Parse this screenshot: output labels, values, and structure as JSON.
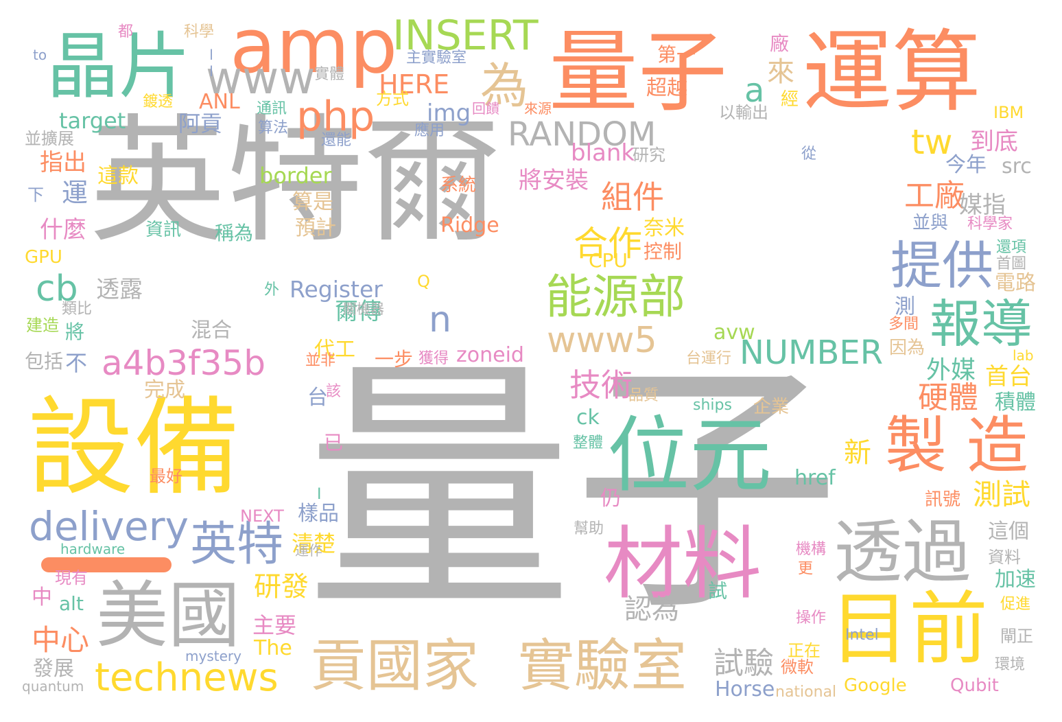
{
  "palette": {
    "gray": "#b3b3b3",
    "orange": "#fc8d62",
    "teal": "#66c2a5",
    "yellow": "#ffd92f",
    "tan": "#e5c494",
    "green": "#a6d854",
    "pink": "#e78ac3",
    "blue": "#8da0cb"
  },
  "dash_color": "#fc8d62",
  "words": [
    {
      "text": "英特爾",
      "color": "gray"
    },
    {
      "text": "量子",
      "color": "gray"
    },
    {
      "text": "量子",
      "color": "orange"
    },
    {
      "text": "運算",
      "color": "orange"
    },
    {
      "text": "amp",
      "color": "orange"
    },
    {
      "text": "晶片",
      "color": "teal"
    },
    {
      "text": "INSERT",
      "color": "green"
    },
    {
      "text": "www",
      "color": "gray"
    },
    {
      "text": "php",
      "color": "orange"
    },
    {
      "text": "為",
      "color": "tan"
    },
    {
      "text": "a",
      "color": "teal"
    },
    {
      "text": "來",
      "color": "tan"
    },
    {
      "text": "HERE",
      "color": "orange"
    },
    {
      "text": "RANDOM",
      "color": "gray"
    },
    {
      "text": "設備",
      "color": "yellow"
    },
    {
      "text": "位元",
      "color": "teal"
    },
    {
      "text": "製 造",
      "color": "orange"
    },
    {
      "text": "報導",
      "color": "teal"
    },
    {
      "text": "提供",
      "color": "blue"
    },
    {
      "text": "能源部",
      "color": "green"
    },
    {
      "text": "www5",
      "color": "tan"
    },
    {
      "text": "a4b3f35b",
      "color": "pink"
    },
    {
      "text": "材料",
      "color": "pink"
    },
    {
      "text": "透過",
      "color": "gray"
    },
    {
      "text": "目前",
      "color": "yellow"
    },
    {
      "text": "美國",
      "color": "gray"
    },
    {
      "text": "英特",
      "color": "blue"
    },
    {
      "text": "delivery",
      "color": "blue"
    },
    {
      "text": "technews",
      "color": "yellow"
    },
    {
      "text": "貢國家",
      "color": "tan"
    },
    {
      "text": "實驗室",
      "color": "tan"
    },
    {
      "text": "tw",
      "color": "yellow"
    },
    {
      "text": "組件",
      "color": "orange"
    },
    {
      "text": "合作",
      "color": "yellow"
    },
    {
      "text": "工廠",
      "color": "orange"
    },
    {
      "text": "cb",
      "color": "teal"
    },
    {
      "text": "n",
      "color": "blue"
    },
    {
      "text": "NUMBER",
      "color": "teal"
    },
    {
      "text": "技術",
      "color": "pink"
    },
    {
      "text": "硬體",
      "color": "orange"
    },
    {
      "text": "測試",
      "color": "yellow"
    },
    {
      "text": "中心",
      "color": "orange"
    },
    {
      "text": "研發",
      "color": "yellow"
    },
    {
      "text": "試驗",
      "color": "gray"
    },
    {
      "text": "認為",
      "color": "gray"
    },
    {
      "text": "target",
      "color": "teal"
    },
    {
      "text": "border",
      "color": "green"
    },
    {
      "text": "blank",
      "color": "pink"
    },
    {
      "text": "將安裝",
      "color": "pink"
    },
    {
      "text": "到底",
      "color": "pink"
    },
    {
      "text": "今年",
      "color": "blue"
    },
    {
      "text": "src",
      "color": "gray"
    },
    {
      "text": "媒指",
      "color": "gray"
    },
    {
      "text": "外媒",
      "color": "teal"
    },
    {
      "text": "首台",
      "color": "yellow"
    },
    {
      "text": "新",
      "color": "yellow"
    },
    {
      "text": "Register",
      "color": "blue"
    },
    {
      "text": "透露",
      "color": "gray"
    },
    {
      "text": "爾傳",
      "color": "teal"
    },
    {
      "text": "混合",
      "color": "gray"
    },
    {
      "text": "代工",
      "color": "yellow"
    },
    {
      "text": "一步",
      "color": "orange"
    },
    {
      "text": "zoneid",
      "color": "pink"
    },
    {
      "text": "avw",
      "color": "green"
    },
    {
      "text": "阿貢",
      "color": "blue"
    },
    {
      "text": "ANL",
      "color": "orange"
    },
    {
      "text": "img",
      "color": "blue"
    },
    {
      "text": "第一",
      "color": "orange"
    },
    {
      "text": "超越",
      "color": "orange"
    },
    {
      "text": "指出",
      "color": "orange"
    },
    {
      "text": "運",
      "color": "blue"
    },
    {
      "text": "什麼",
      "color": "pink"
    },
    {
      "text": "算是",
      "color": "tan"
    },
    {
      "text": "預計",
      "color": "tan"
    },
    {
      "text": "稱為",
      "color": "teal"
    },
    {
      "text": "奈米",
      "color": "yellow"
    },
    {
      "text": "控制",
      "color": "orange"
    },
    {
      "text": "CPU",
      "color": "yellow"
    },
    {
      "text": "Ridge",
      "color": "orange"
    },
    {
      "text": "系統",
      "color": "orange"
    },
    {
      "text": "這款",
      "color": "yellow"
    },
    {
      "text": "GPU",
      "color": "yellow"
    },
    {
      "text": "包括",
      "color": "gray"
    },
    {
      "text": "不",
      "color": "blue"
    },
    {
      "text": "將",
      "color": "teal"
    },
    {
      "text": "建造",
      "color": "green"
    },
    {
      "text": "類比",
      "color": "gray"
    },
    {
      "text": "完成",
      "color": "tan"
    },
    {
      "text": "台",
      "color": "blue"
    },
    {
      "text": "已",
      "color": "pink"
    },
    {
      "text": "ck",
      "color": "teal"
    },
    {
      "text": "href",
      "color": "teal"
    },
    {
      "text": "仍",
      "color": "pink"
    },
    {
      "text": "樣品",
      "color": "blue"
    },
    {
      "text": "清楚",
      "color": "yellow"
    },
    {
      "text": "The",
      "color": "yellow"
    },
    {
      "text": "主要",
      "color": "pink"
    },
    {
      "text": "NEXT",
      "color": "pink"
    },
    {
      "text": "hardware",
      "color": "teal"
    },
    {
      "text": "現有",
      "color": "pink"
    },
    {
      "text": "中",
      "color": "pink"
    },
    {
      "text": "alt",
      "color": "teal"
    },
    {
      "text": "發展",
      "color": "gray"
    },
    {
      "text": "quantum",
      "color": "gray"
    },
    {
      "text": "mystery",
      "color": "blue"
    },
    {
      "text": "Horse",
      "color": "blue"
    },
    {
      "text": "national",
      "color": "tan"
    },
    {
      "text": "Google",
      "color": "yellow"
    },
    {
      "text": "Qubit",
      "color": "pink"
    },
    {
      "text": "Intel",
      "color": "blue"
    },
    {
      "text": "正在",
      "color": "yellow"
    },
    {
      "text": "微軟",
      "color": "orange"
    },
    {
      "text": "操作",
      "color": "pink"
    },
    {
      "text": "更",
      "color": "orange"
    },
    {
      "text": "機構",
      "color": "pink"
    },
    {
      "text": "試",
      "color": "teal"
    },
    {
      "text": "幫助",
      "color": "gray"
    },
    {
      "text": "訊號",
      "color": "orange"
    },
    {
      "text": "這個",
      "color": "gray"
    },
    {
      "text": "資料",
      "color": "gray"
    },
    {
      "text": "加速",
      "color": "teal"
    },
    {
      "text": "促進",
      "color": "yellow"
    },
    {
      "text": "閘正",
      "color": "gray"
    },
    {
      "text": "環境",
      "color": "gray"
    },
    {
      "text": "企業",
      "color": "tan"
    },
    {
      "text": "ships",
      "color": "teal"
    },
    {
      "text": "品質",
      "color": "tan"
    },
    {
      "text": "整體",
      "color": "teal"
    },
    {
      "text": "積體",
      "color": "teal"
    },
    {
      "text": "lab",
      "color": "yellow"
    },
    {
      "text": "因為",
      "color": "tan"
    },
    {
      "text": "多間",
      "color": "orange"
    },
    {
      "text": "測",
      "color": "blue"
    },
    {
      "text": "台運行",
      "color": "tan"
    },
    {
      "text": "電路",
      "color": "tan"
    },
    {
      "text": "首圖",
      "color": "gray"
    },
    {
      "text": "還項",
      "color": "teal"
    },
    {
      "text": "並與",
      "color": "blue"
    },
    {
      "text": "科學家",
      "color": "pink"
    },
    {
      "text": "從",
      "color": "blue"
    },
    {
      "text": "研究",
      "color": "gray"
    },
    {
      "text": "IBM",
      "color": "yellow"
    },
    {
      "text": "以輸出",
      "color": "gray"
    },
    {
      "text": "經",
      "color": "yellow"
    },
    {
      "text": "廠",
      "color": "pink"
    },
    {
      "text": "回饋",
      "color": "pink"
    },
    {
      "text": "來源",
      "color": "orange"
    },
    {
      "text": "應用",
      "color": "blue"
    },
    {
      "text": "還能",
      "color": "blue"
    },
    {
      "text": "方式",
      "color": "yellow"
    },
    {
      "text": "主實驗室",
      "color": "blue"
    },
    {
      "text": "實體",
      "color": "gray"
    },
    {
      "text": "通訊",
      "color": "teal"
    },
    {
      "text": "算法",
      "color": "blue"
    },
    {
      "text": "並擴展",
      "color": "gray"
    },
    {
      "text": "鍍透",
      "color": "yellow"
    },
    {
      "text": "to",
      "color": "blue"
    },
    {
      "text": "都",
      "color": "pink"
    },
    {
      "text": "科學",
      "color": "tan"
    },
    {
      "text": "ll",
      "color": "blue"
    },
    {
      "text": "下",
      "color": "blue"
    },
    {
      "text": "資訊",
      "color": "teal"
    },
    {
      "text": "外",
      "color": "teal"
    },
    {
      "text": "Q",
      "color": "yellow"
    },
    {
      "text": "關機器",
      "color": "gray"
    },
    {
      "text": "該",
      "color": "pink"
    },
    {
      "text": "並非",
      "color": "orange"
    },
    {
      "text": "獲得",
      "color": "pink"
    },
    {
      "text": "運作",
      "color": "gray"
    },
    {
      "text": "I",
      "color": "teal"
    },
    {
      "text": "最好",
      "color": "orange"
    }
  ]
}
